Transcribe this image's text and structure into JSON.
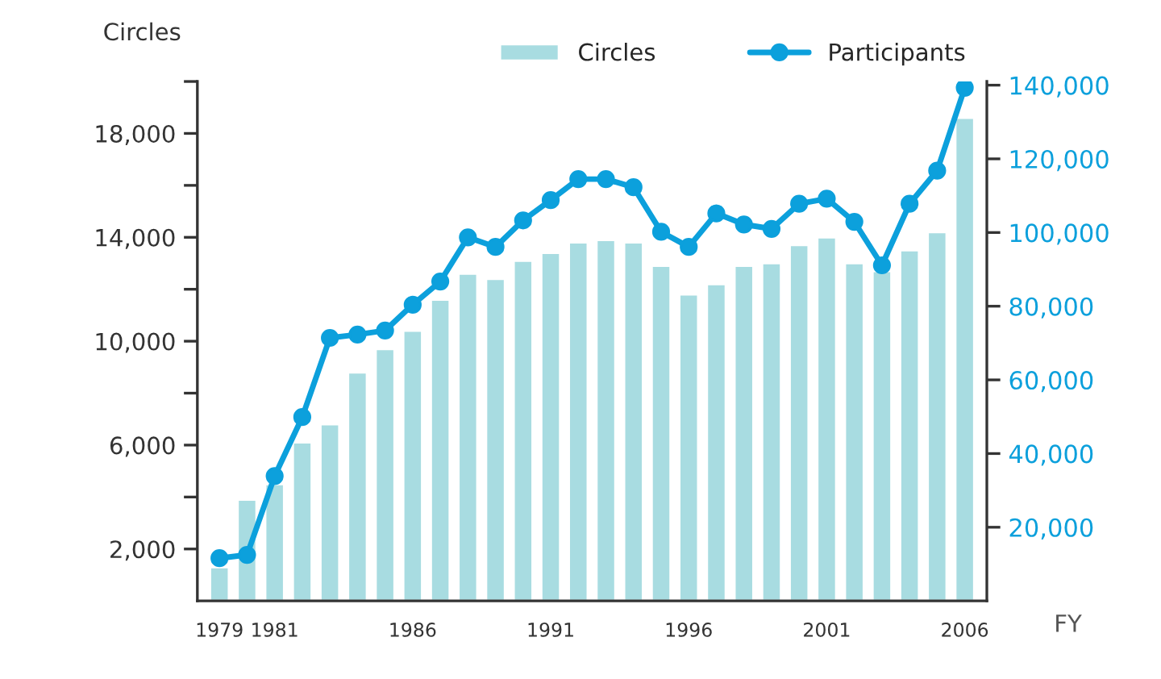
{
  "chart_data": {
    "type": "bar",
    "ylabel": "Circles",
    "xlabel": "FY",
    "categories": [
      "1979",
      null,
      "1981",
      null,
      null,
      null,
      null,
      "1986",
      null,
      null,
      null,
      null,
      "1991",
      null,
      null,
      null,
      null,
      "1996",
      null,
      null,
      null,
      null,
      "2001",
      null,
      null,
      null,
      null,
      "2006"
    ],
    "series": [
      {
        "name": "Circles",
        "color": "#a8dce1",
        "values": [
          1300,
          3900,
          4500,
          6100,
          6800,
          8800,
          9700,
          10400,
          11600,
          12600,
          12400,
          13100,
          13400,
          13800,
          13900,
          13800,
          12900,
          11800,
          12200,
          12900,
          13000,
          13700,
          14000,
          13000,
          12700,
          13500,
          14200,
          18600
        ]
      },
      {
        "name": "Participants",
        "type": "line",
        "axis": "y2",
        "color": "#0ca0dc",
        "marker": "circle",
        "values": [
          11600,
          12500,
          33900,
          49900,
          71400,
          72300,
          73400,
          80400,
          86700,
          98700,
          96100,
          103300,
          108800,
          114500,
          114500,
          112300,
          100200,
          96100,
          105200,
          102200,
          101000,
          107800,
          109200,
          102900,
          91100,
          107800,
          116800,
          139300
        ]
      }
    ],
    "ylim": [
      0,
      20000
    ],
    "yticks": [
      {
        "value": 2000,
        "label": "2,000"
      },
      {
        "value": 4000,
        "label": null
      },
      {
        "value": 6000,
        "label": "6,000"
      },
      {
        "value": 8000,
        "label": null
      },
      {
        "value": 10000,
        "label": "10,000"
      },
      {
        "value": 12000,
        "label": null
      },
      {
        "value": 14000,
        "label": "14,000"
      },
      {
        "value": 16000,
        "label": null
      },
      {
        "value": 18000,
        "label": "18,000"
      },
      {
        "value": 20000,
        "label": null
      }
    ],
    "y2lim": [
      0,
      141000
    ],
    "y2ticks": [
      {
        "value": 20000,
        "label": "20,000"
      },
      {
        "value": 40000,
        "label": "40,000"
      },
      {
        "value": 60000,
        "label": "60,000"
      },
      {
        "value": 80000,
        "label": "80,000"
      },
      {
        "value": 100000,
        "label": "100,000"
      },
      {
        "value": 120000,
        "label": "120,000"
      },
      {
        "value": 140000,
        "label": "140,000"
      }
    ],
    "grid": false,
    "legend": "top right"
  }
}
